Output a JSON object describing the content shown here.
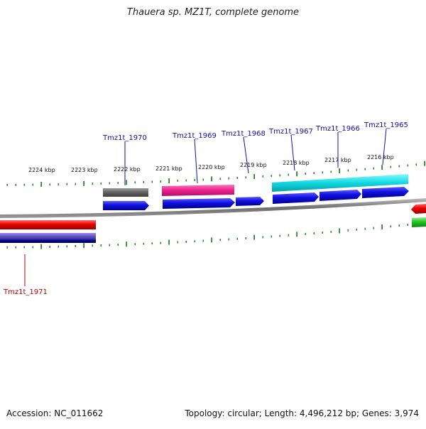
{
  "title": "Thauera sp. MZ1T, complete genome",
  "footer": {
    "accession": "Accession: NC_011662",
    "summary": "Topology: circular; Length: 4,496,212 bp; Genes: 3,974"
  },
  "colors": {
    "forward_gene": "#1010e0",
    "reverse_gene": "#e00000",
    "grey_feature": "#666666",
    "pink_feature": "#e8208a",
    "cyan_feature": "#10d8e0",
    "purple_feature": "#6a5acd",
    "navy_feature": "#000080",
    "green_feature": "#20c020",
    "tick": "#2a8a2a",
    "backbone": "#808080",
    "label_forward": "#1010b0",
    "label_reverse": "#c00000"
  },
  "ticks": [
    {
      "label": "2224 kbp"
    },
    {
      "label": "2223 kbp"
    },
    {
      "label": "2222 kbp"
    },
    {
      "label": "2221 kbp"
    },
    {
      "label": "2220 kbp"
    },
    {
      "label": "2219 kbp"
    },
    {
      "label": "2218 kbp"
    },
    {
      "label": "2217 kbp"
    },
    {
      "label": "2216 kbp"
    }
  ],
  "gene_labels": [
    {
      "text": "Tmz1t_1970",
      "strand": "forward"
    },
    {
      "text": "Tmz1t_1969",
      "strand": "forward"
    },
    {
      "text": "Tmz1t_1968",
      "strand": "forward"
    },
    {
      "text": "Tmz1t_1967",
      "strand": "forward"
    },
    {
      "text": "Tmz1t_1966",
      "strand": "forward"
    },
    {
      "text": "Tmz1t_1965",
      "strand": "forward"
    },
    {
      "text": "Tmz1t_1971",
      "strand": "reverse"
    }
  ]
}
